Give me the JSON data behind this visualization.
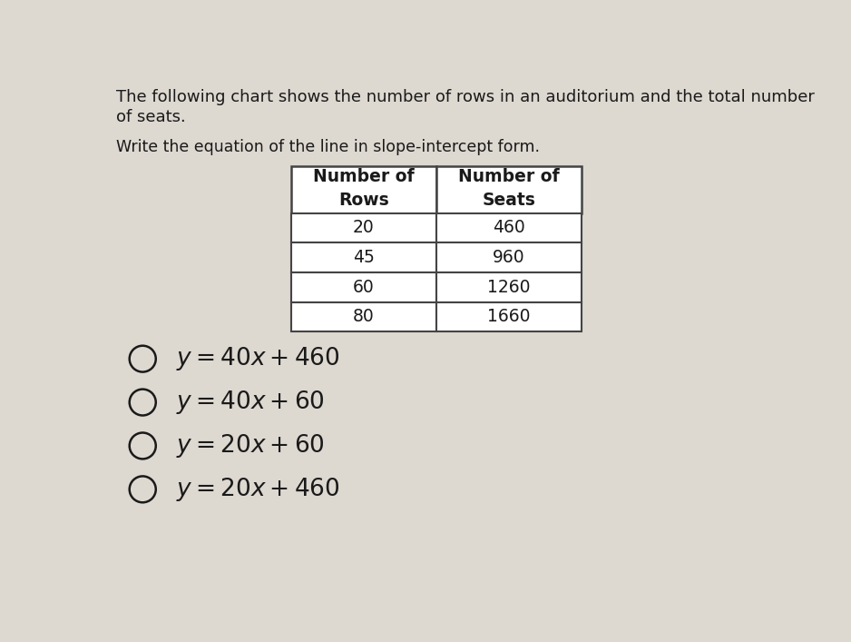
{
  "title_line1": "The following chart shows the number of rows in an auditorium and the total number",
  "title_line2": "of seats.",
  "subtitle": "Write the equation of the line in slope-intercept form.",
  "col1_header_line1": "Number of",
  "col1_header_line2": "Rows",
  "col2_header_line1": "Number of",
  "col2_header_line2": "Seats",
  "rows": [
    [
      "20",
      "460"
    ],
    [
      "45",
      "960"
    ],
    [
      "60",
      "1260"
    ],
    [
      "80",
      "1660"
    ]
  ],
  "options": [
    "$y = 40x + 460$",
    "$y = 40x + 60$",
    "$y = 20x + 60$",
    "$y = 20x + 460$"
  ],
  "bg_color": "#ddd8d0",
  "table_cell_bg": "#e8e2da",
  "table_border_color": "#444444",
  "text_color": "#1a1a1a",
  "title_fontsize": 13.0,
  "subtitle_fontsize": 12.5,
  "option_fontsize": 19,
  "table_fontsize": 13.5,
  "table_header_fontsize": 13.5
}
